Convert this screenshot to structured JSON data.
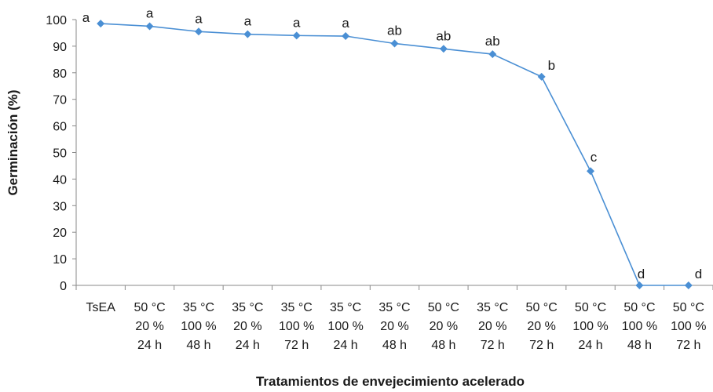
{
  "chart_data": {
    "type": "line",
    "title": "",
    "xlabel": "Tratamientos de envejecimiento acelerado",
    "ylabel": "Germinación (%)",
    "ylim": [
      0,
      100
    ],
    "yticks": [
      0,
      10,
      20,
      30,
      40,
      50,
      60,
      70,
      80,
      90,
      100
    ],
    "grid": false,
    "legend": "none",
    "categories": [
      [
        "TsEA"
      ],
      [
        "50  °C",
        "20 %",
        "24  h"
      ],
      [
        "35  °C",
        "100 %",
        "48  h"
      ],
      [
        "35  °C",
        "20 %",
        "24  h"
      ],
      [
        "35  °C",
        "100 %",
        "72  h"
      ],
      [
        "35  °C",
        "100 %",
        "24  h"
      ],
      [
        "35  °C",
        "20 %",
        "48  h"
      ],
      [
        "50  °C",
        "20 %",
        "48  h"
      ],
      [
        "35  °C",
        "20 %",
        "72  h"
      ],
      [
        "50  °C",
        "20 %",
        "72  h"
      ],
      [
        "50  °C",
        "100 %",
        "24  h"
      ],
      [
        "50  °C",
        "100 %",
        "48  h"
      ],
      [
        "50  °C",
        "100 %",
        "72  h"
      ]
    ],
    "series": [
      {
        "color": "#4a8fd4",
        "marker": "diamond",
        "values": [
          98.5,
          97.5,
          95.5,
          94.5,
          94,
          93.8,
          91,
          89,
          87,
          78.5,
          43,
          0,
          0
        ],
        "annotations": [
          "a",
          "a",
          "a",
          "a",
          "a",
          "a",
          "ab",
          "ab",
          "ab",
          "b",
          "c",
          "d",
          "d"
        ]
      }
    ]
  }
}
